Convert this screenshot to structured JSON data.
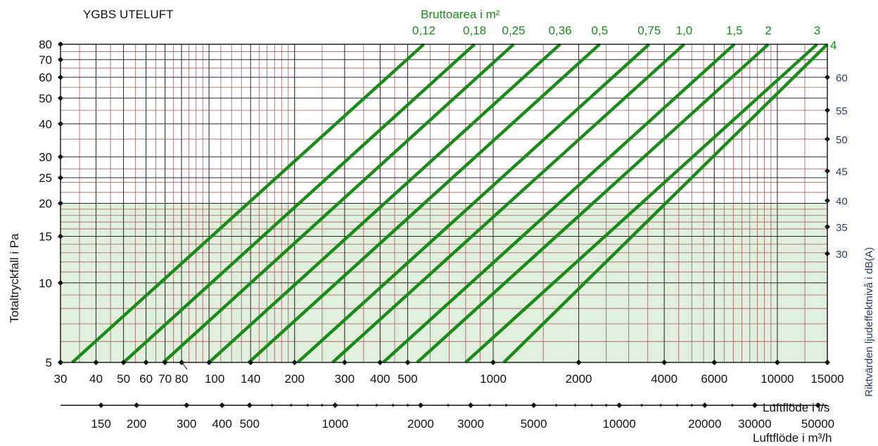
{
  "chart_data": {
    "type": "line",
    "title": "YGBS UTELUFT",
    "top_axis_title": "Bruttoarea i m²",
    "xlabel": "Luftflöde i l/s",
    "xlabel_secondary": "Luftflöde i m³/h",
    "ylabel": "Totaltryckfall i Pa",
    "ylabel_right": "Riktvärden ljudeffektnivå i dB(A)",
    "x_scale": "log",
    "y_scale": "log",
    "xlim": [
      30,
      15000
    ],
    "ylim": [
      5,
      80
    ],
    "x_ticks": [
      {
        "value": 30,
        "label": "30"
      },
      {
        "value": 40,
        "label": "40"
      },
      {
        "value": 50,
        "label": "50"
      },
      {
        "value": 60,
        "label": "60"
      },
      {
        "value": 70,
        "label": "70"
      },
      {
        "value": 80,
        "label": "80"
      },
      {
        "value": 100,
        "label": "100"
      },
      {
        "value": 140,
        "label": "140"
      },
      {
        "value": 200,
        "label": "200"
      },
      {
        "value": 300,
        "label": "300"
      },
      {
        "value": 400,
        "label": "400"
      },
      {
        "value": 500,
        "label": "500"
      },
      {
        "value": 1000,
        "label": "1000"
      },
      {
        "value": 2000,
        "label": "2000"
      },
      {
        "value": 4000,
        "label": "4000"
      },
      {
        "value": 6000,
        "label": "6000"
      },
      {
        "value": 10000,
        "label": "10000"
      },
      {
        "value": 15000,
        "label": "15000"
      }
    ],
    "x_ticks_secondary": [
      {
        "value": 150,
        "label": "150"
      },
      {
        "value": 200,
        "label": "200"
      },
      {
        "value": 300,
        "label": "300"
      },
      {
        "value": 400,
        "label": "400"
      },
      {
        "value": 500,
        "label": "500"
      },
      {
        "value": 1000,
        "label": "1000"
      },
      {
        "value": 2000,
        "label": "2000"
      },
      {
        "value": 3000,
        "label": "3000"
      },
      {
        "value": 5000,
        "label": "5000"
      },
      {
        "value": 10000,
        "label": "10000"
      },
      {
        "value": 20000,
        "label": "20000"
      },
      {
        "value": 30000,
        "label": "30000"
      },
      {
        "value": 50000,
        "label": "50000"
      }
    ],
    "y_ticks": [
      {
        "value": 5,
        "label": "5"
      },
      {
        "value": 10,
        "label": "10"
      },
      {
        "value": 15,
        "label": "15"
      },
      {
        "value": 20,
        "label": "20"
      },
      {
        "value": 25,
        "label": "25"
      },
      {
        "value": 30,
        "label": "30"
      },
      {
        "value": 40,
        "label": "40"
      },
      {
        "value": 50,
        "label": "50"
      },
      {
        "value": 60,
        "label": "60"
      },
      {
        "value": 70,
        "label": "70"
      },
      {
        "value": 80,
        "label": "80"
      }
    ],
    "y_ticks_right": [
      {
        "pa": 60,
        "label": "60"
      },
      {
        "pa": 45,
        "label": "55"
      },
      {
        "pa": 35,
        "label": "50"
      },
      {
        "pa": 26.5,
        "label": "45"
      },
      {
        "pa": 20.5,
        "label": "40"
      },
      {
        "pa": 16.3,
        "label": "35"
      },
      {
        "pa": 12.9,
        "label": "30"
      }
    ],
    "shaded_region": {
      "y_max": 20,
      "color": "#e0f0dc"
    },
    "series": [
      {
        "name": "0,12",
        "x": [
          33,
          570
        ],
        "y": [
          5,
          80
        ]
      },
      {
        "name": "0,18",
        "x": [
          50,
          860
        ],
        "y": [
          5,
          80
        ]
      },
      {
        "name": "0,25",
        "x": [
          69,
          1180
        ],
        "y": [
          5,
          80
        ]
      },
      {
        "name": "0,36",
        "x": [
          100,
          1720
        ],
        "y": [
          5,
          80
        ]
      },
      {
        "name": "0,5",
        "x": [
          138,
          2370
        ],
        "y": [
          5,
          80
        ]
      },
      {
        "name": "0,75",
        "x": [
          205,
          3540
        ],
        "y": [
          5,
          80
        ]
      },
      {
        "name": "1,0",
        "x": [
          272,
          4700
        ],
        "y": [
          5,
          80
        ]
      },
      {
        "name": "1,5",
        "x": [
          410,
          7060
        ],
        "y": [
          5,
          80
        ]
      },
      {
        "name": "2",
        "x": [
          540,
          9300
        ],
        "y": [
          5,
          80
        ]
      },
      {
        "name": "3",
        "x": [
          800,
          13800
        ],
        "y": [
          5,
          80
        ]
      },
      {
        "name": "4",
        "x": [
          1090,
          15000
        ],
        "y": [
          5,
          80
        ]
      }
    ],
    "colors": {
      "line": "#1a8a1a",
      "label": "#1a8a1a",
      "right_axis_text": "#2c3e66",
      "grid_major": "#2a2a2a",
      "grid_minor": "#a45a5a",
      "shade": "#e0f0dc"
    },
    "grid": true
  }
}
